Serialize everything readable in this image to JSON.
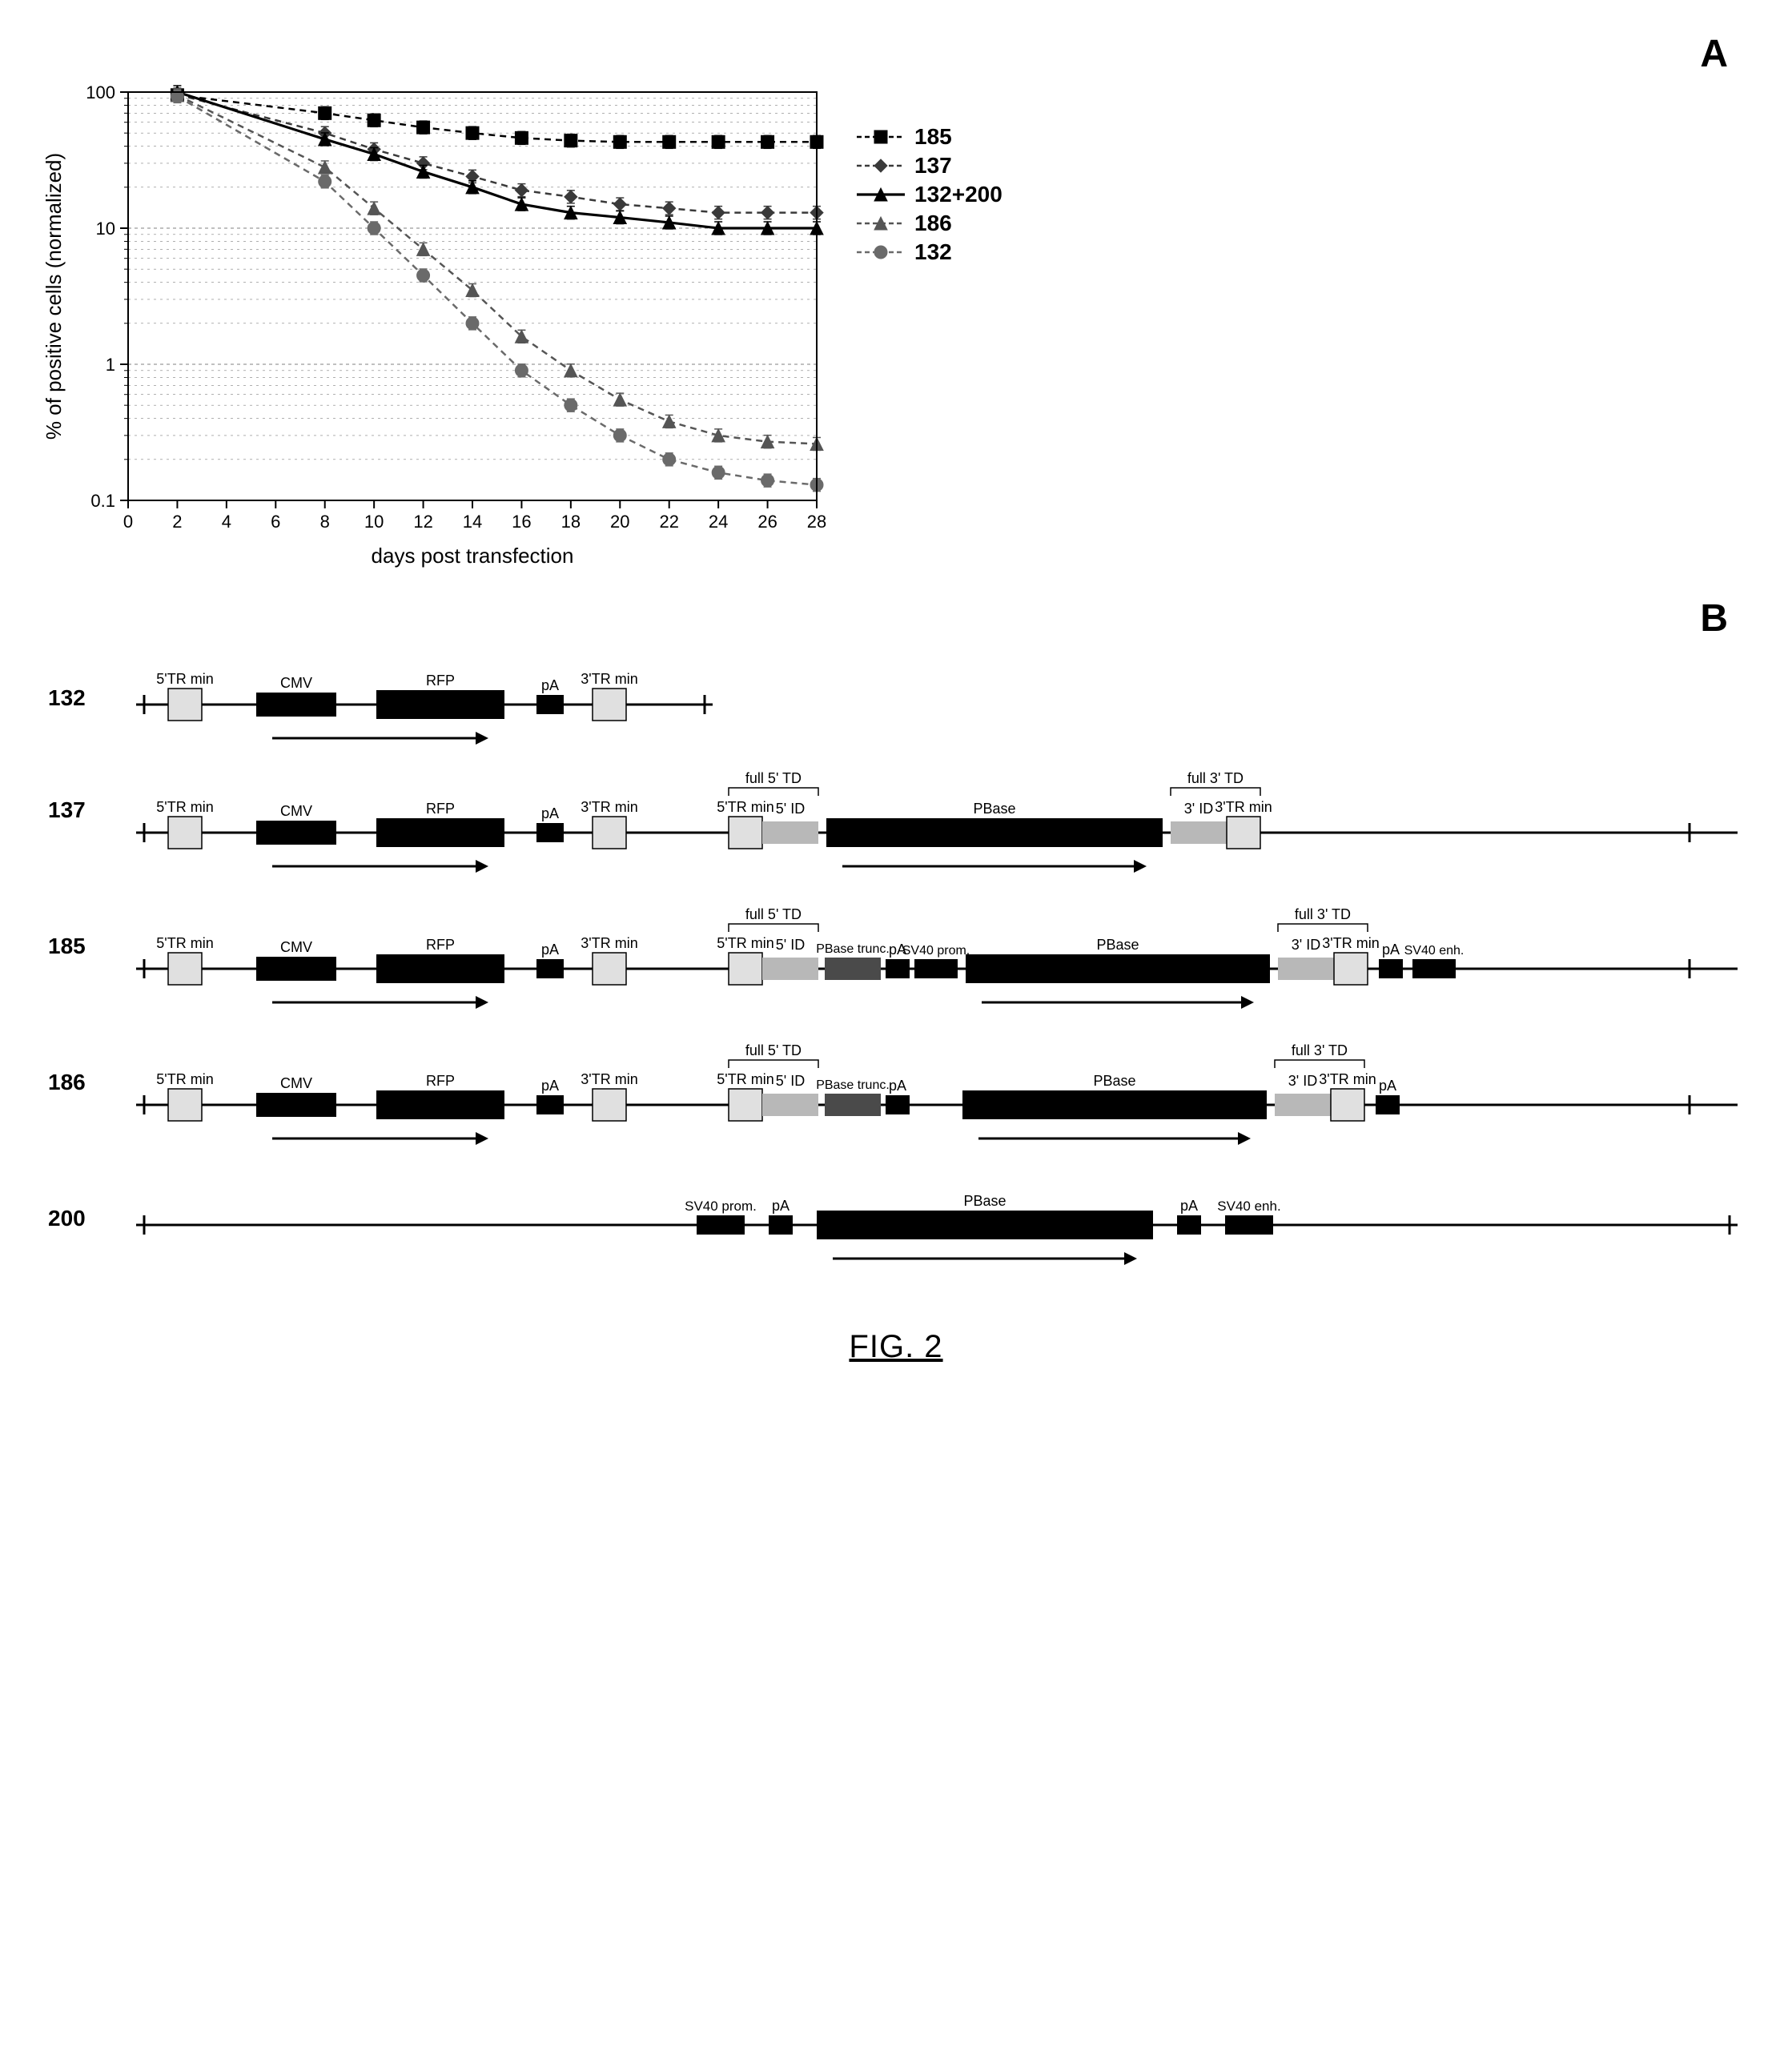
{
  "figure_caption": "FIG. 2",
  "panel_a": {
    "label": "A",
    "chart": {
      "type": "line",
      "xlabel": "days post transfection",
      "ylabel": "% of positive cells (normalized)",
      "xlim": [
        0,
        28
      ],
      "xtick_step": 2,
      "xticks": [
        "0",
        "2",
        "4",
        "6",
        "8",
        "10",
        "12",
        "14",
        "16",
        "18",
        "20",
        "22",
        "24",
        "26",
        "28"
      ],
      "yscale": "log",
      "ylim": [
        0.1,
        100
      ],
      "yticks": [
        0.1,
        1,
        10,
        100
      ],
      "ytick_labels": [
        "0.1",
        "1",
        "10",
        "100"
      ],
      "background_color": "#ffffff",
      "grid_color": "#808080",
      "axis_color": "#000000",
      "label_fontsize": 26,
      "tick_fontsize": 22,
      "series": [
        {
          "name": "185",
          "marker": "square",
          "dash": "dash",
          "color": "#000000",
          "width": 2.5,
          "x": [
            2,
            8,
            10,
            12,
            14,
            16,
            18,
            20,
            22,
            24,
            26,
            28
          ],
          "y": [
            95,
            70,
            62,
            55,
            50,
            46,
            44,
            43,
            43,
            43,
            43,
            43
          ]
        },
        {
          "name": "137",
          "marker": "diamond",
          "dash": "dash",
          "color": "#3a3a3a",
          "width": 2.5,
          "x": [
            2,
            8,
            10,
            12,
            14,
            16,
            18,
            20,
            22,
            24,
            26,
            28
          ],
          "y": [
            96,
            50,
            38,
            30,
            24,
            19,
            17,
            15,
            14,
            13,
            13,
            13
          ]
        },
        {
          "name": "132+200",
          "marker": "triangle",
          "dash": "solid",
          "color": "#000000",
          "width": 3.2,
          "x": [
            2,
            8,
            10,
            12,
            14,
            16,
            18,
            20,
            22,
            24,
            26,
            28
          ],
          "y": [
            100,
            45,
            35,
            26,
            20,
            15,
            13,
            12,
            11,
            10,
            10,
            10
          ]
        },
        {
          "name": "186",
          "marker": "triangle",
          "dash": "dash",
          "color": "#555555",
          "width": 2.5,
          "x": [
            2,
            8,
            10,
            12,
            14,
            16,
            18,
            20,
            22,
            24,
            26,
            28
          ],
          "y": [
            95,
            28,
            14,
            7,
            3.5,
            1.6,
            0.9,
            0.55,
            0.38,
            0.3,
            0.27,
            0.26
          ]
        },
        {
          "name": "132",
          "marker": "circle",
          "dash": "dash",
          "color": "#6a6a6a",
          "width": 2.5,
          "x": [
            2,
            8,
            10,
            12,
            14,
            16,
            18,
            20,
            22,
            24,
            26,
            28
          ],
          "y": [
            93,
            22,
            10,
            4.5,
            2,
            0.9,
            0.5,
            0.3,
            0.2,
            0.16,
            0.14,
            0.13
          ]
        }
      ],
      "legend_position": "right",
      "legend_fontsize": 28
    }
  },
  "panel_b": {
    "label": "B",
    "colors": {
      "backbone": "#000000",
      "tr_fill": "#e0e0e0",
      "tr_border": "#000000",
      "id_fill": "#b8b8b8",
      "cmv_fill": "#000000",
      "rfp_fill": "#000000",
      "pA_fill": "#000000",
      "pbase_fill": "#000000",
      "sv40_fill": "#000000",
      "trunc_fill": "#4a4a4a",
      "bracket": "#000000",
      "arrow": "#000000"
    },
    "label_fontsize": 18,
    "element_labels": {
      "tr5": "5'TR min",
      "tr3": "3'TR min",
      "cmv": "CMV",
      "rfp": "RFP",
      "pA": "pA",
      "id5": "5' ID",
      "id3": "3' ID",
      "td5": "full 5' TD",
      "td3": "full 3' TD",
      "pbase": "PBase",
      "pbase_trunc": "PBase trunc.",
      "sv40_prom": "SV40 prom.",
      "sv40_enh": "SV40 enh."
    },
    "constructs": [
      {
        "id": "132",
        "transposon": {
          "elements": [
            "tr5",
            "cmv",
            "rfp",
            "pA",
            "tr3"
          ],
          "td": null
        },
        "helper": null
      },
      {
        "id": "137",
        "transposon": {
          "elements": [
            "tr5",
            "cmv",
            "rfp",
            "pA",
            "tr3"
          ],
          "td": "right",
          "td_elements": [
            "tr5r",
            "id5",
            "pbase",
            "id3",
            "tr3r"
          ],
          "brackets": [
            "td5",
            "td3"
          ]
        },
        "helper": null
      },
      {
        "id": "185",
        "transposon": {
          "elements": [
            "tr5",
            "cmv",
            "rfp",
            "pA",
            "tr3"
          ],
          "td": "right",
          "td_elements": [
            "tr5r",
            "id5",
            "pbase_trunc",
            "pA2",
            "sv40_prom",
            "pbase",
            "id3",
            "tr3r",
            "pA3",
            "sv40_enh"
          ],
          "brackets": [
            "td5",
            "td3"
          ]
        },
        "helper": null
      },
      {
        "id": "186",
        "transposon": {
          "elements": [
            "tr5",
            "cmv",
            "rfp",
            "pA",
            "tr3"
          ],
          "td": "right",
          "td_elements": [
            "tr5r",
            "id5",
            "pbase_trunc",
            "pA2",
            "spacer",
            "pbase",
            "id3",
            "tr3r",
            "pA3"
          ],
          "brackets": [
            "td5",
            "td3"
          ]
        },
        "helper": null
      },
      {
        "id": "200",
        "transposon": null,
        "helper": {
          "elements": [
            "sv40_prom_l",
            "pA_l",
            "pbase",
            "pA_r",
            "sv40_enh_r"
          ]
        }
      }
    ]
  }
}
